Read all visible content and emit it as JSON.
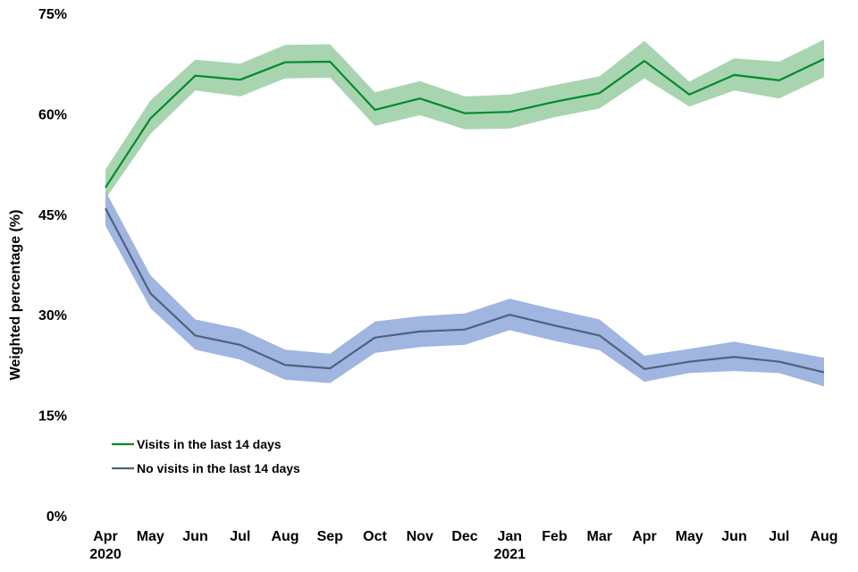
{
  "chart_data": {
    "type": "line",
    "ylabel": "Weighted percentage (%)",
    "ylim": [
      0,
      75
    ],
    "yticks": [
      0,
      15,
      30,
      45,
      60,
      75
    ],
    "ytick_labels": [
      "0%",
      "15%",
      "30%",
      "45%",
      "60%",
      "75%"
    ],
    "categories": [
      "Apr",
      "May",
      "Jun",
      "Jul",
      "Aug",
      "Sep",
      "Oct",
      "Nov",
      "Dec",
      "Jan",
      "Feb",
      "Mar",
      "Apr",
      "May",
      "Jun",
      "Jul",
      "Aug"
    ],
    "year_labels": [
      {
        "index": 0,
        "label": "2020"
      },
      {
        "index": 9,
        "label": "2021"
      }
    ],
    "grid": false,
    "legend_position": "bottom-left",
    "series": [
      {
        "name": "Visits in the last 14 days",
        "color": "#008a2e",
        "band_color": "#a8d5b0",
        "values": [
          49,
          59.3,
          65.7,
          65.1,
          67.7,
          67.8,
          60.6,
          62.3,
          60.1,
          60.3,
          61.8,
          63.1,
          67.9,
          62.9,
          65.8,
          65.0,
          68.2
        ],
        "lower": [
          47.3,
          57.0,
          63.5,
          62.6,
          65.3,
          65.4,
          58.2,
          59.8,
          57.7,
          57.8,
          59.5,
          60.8,
          65.3,
          61.1,
          63.5,
          62.3,
          65.5
        ],
        "upper": [
          51.7,
          62.0,
          68.1,
          67.5,
          70.3,
          70.4,
          63.2,
          64.9,
          62.6,
          62.9,
          64.3,
          65.6,
          70.9,
          64.8,
          68.3,
          67.8,
          71.1
        ]
      },
      {
        "name": "No visits in the last 14 days",
        "color": "#4e6280",
        "band_color": "#a0b5e0",
        "values": [
          45.9,
          33.2,
          26.9,
          25.5,
          22.5,
          22.0,
          26.6,
          27.5,
          27.8,
          30.0,
          28.4,
          26.9,
          21.9,
          23.0,
          23.7,
          23.0,
          21.4
        ],
        "lower": [
          43.3,
          31.0,
          24.8,
          23.3,
          20.3,
          19.8,
          24.3,
          25.2,
          25.5,
          27.7,
          26.1,
          24.7,
          20.0,
          21.3,
          21.6,
          21.3,
          19.3
        ],
        "upper": [
          48.5,
          35.9,
          29.3,
          27.9,
          24.8,
          24.2,
          29.0,
          29.8,
          30.2,
          32.4,
          30.8,
          29.3,
          23.9,
          24.9,
          26.0,
          24.8,
          23.6
        ]
      }
    ]
  }
}
